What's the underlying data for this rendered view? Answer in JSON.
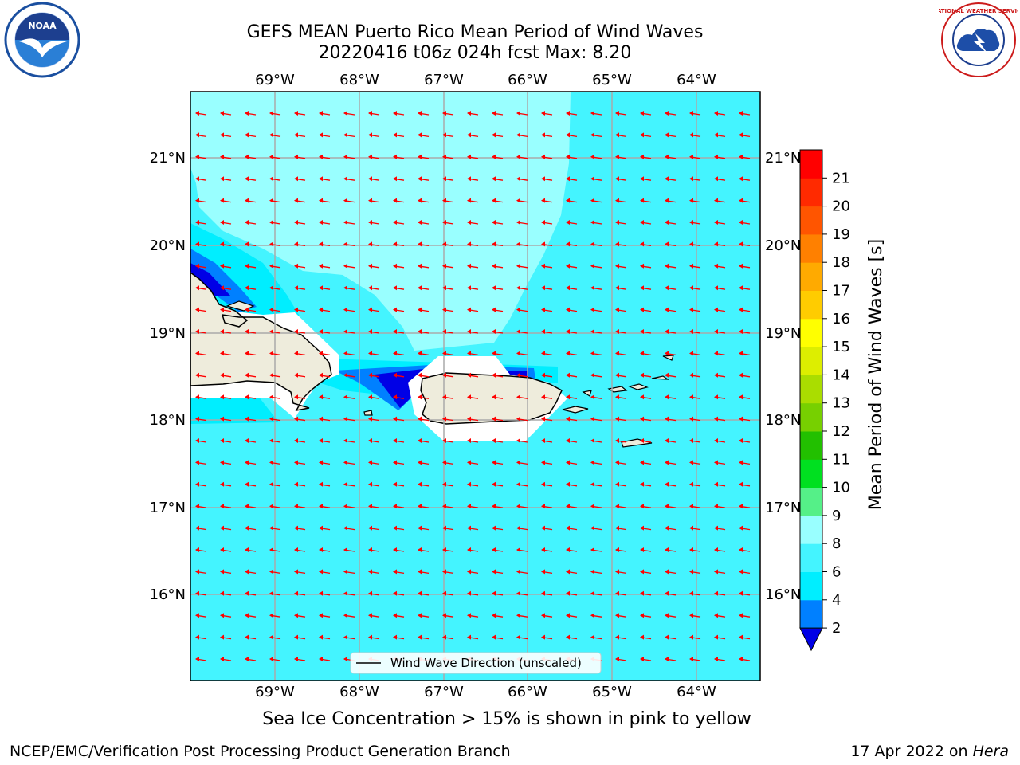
{
  "header": {
    "title_line1": "GEFS MEAN Puerto Rico Mean Period of Wind Waves",
    "title_line2": "20220416 t06z 024h fcst   Max: 8.20"
  },
  "logos": {
    "left": "noaa-logo",
    "right": "nws-logo",
    "left_text": "NOAA",
    "right_text": "NATIONAL WEATHER SERVICE"
  },
  "map": {
    "lon_labels": [
      "69°W",
      "68°W",
      "67°W",
      "66°W",
      "65°W",
      "64°W"
    ],
    "lat_labels": [
      "21°N",
      "20°N",
      "19°N",
      "18°N",
      "17°N",
      "16°N"
    ],
    "legend_label": "Wind Wave Direction (unscaled)",
    "arrow_color": "#ff0000",
    "land_color": "#eeecdc"
  },
  "colorbar": {
    "label": "Mean Period of Wind Waves [s]",
    "ticks": [
      "2",
      "4",
      "6",
      "8",
      "9",
      "10",
      "11",
      "12",
      "13",
      "14",
      "15",
      "16",
      "17",
      "18",
      "19",
      "20",
      "21"
    ],
    "colors": [
      "#0000e6",
      "#0080ff",
      "#00eeff",
      "#44f4ff",
      "#99ffff",
      "#55f088",
      "#00e020",
      "#22c000",
      "#77d000",
      "#aadd00",
      "#ddee00",
      "#ffff00",
      "#ffcc00",
      "#ffaa00",
      "#ff8000",
      "#ff5500",
      "#ff2a00",
      "#ff0000"
    ]
  },
  "footer": {
    "sea_ice_note": "Sea Ice Concentration > 15% is shown in pink to yellow",
    "branch": "NCEP/EMC/Verification Post Processing Product Generation Branch",
    "date": "17 Apr 2022 on",
    "host": "Hera"
  }
}
